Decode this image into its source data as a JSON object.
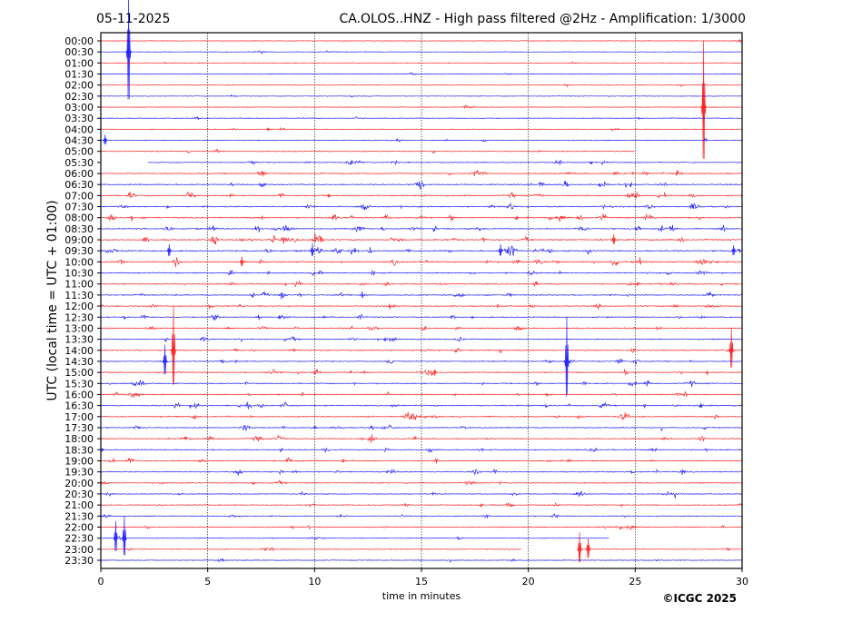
{
  "chart_data": {
    "type": "line",
    "date": "05-11-2025",
    "title": "CA.OLOS..HNZ - High pass filtered @2Hz - Amplification: 1/3000",
    "xlabel": "time in minutes",
    "ylabel": "UTC (local time = UTC + 01:00)",
    "xlim": [
      0,
      30
    ],
    "xticks": [
      "0",
      "5",
      "10",
      "15",
      "20",
      "25",
      "30"
    ],
    "grid": "vertical dotted at every 5 minutes",
    "colors": {
      "even_rows": "#ff0000",
      "odd_rows": "#0000ff"
    },
    "rows": [
      "00:00",
      "00:30",
      "01:00",
      "01:30",
      "02:00",
      "02:30",
      "03:00",
      "03:30",
      "04:00",
      "04:30",
      "05:00",
      "05:30",
      "06:00",
      "06:30",
      "07:00",
      "07:30",
      "08:00",
      "08:30",
      "09:00",
      "09:30",
      "10:00",
      "10:30",
      "11:00",
      "11:30",
      "12:00",
      "12:30",
      "13:00",
      "13:30",
      "14:00",
      "14:30",
      "15:00",
      "15:30",
      "16:00",
      "16:30",
      "17:00",
      "17:30",
      "18:00",
      "18:30",
      "19:00",
      "19:30",
      "20:00",
      "20:30",
      "21:00",
      "21:30",
      "22:00",
      "22:30",
      "23:00",
      "23:30"
    ],
    "row_activity": [
      0.05,
      0.05,
      0.05,
      0.06,
      0.05,
      0.05,
      0.06,
      0.08,
      0.1,
      0.12,
      0.15,
      0.2,
      0.3,
      0.32,
      0.35,
      0.35,
      0.4,
      0.4,
      0.45,
      0.5,
      0.45,
      0.35,
      0.3,
      0.35,
      0.3,
      0.3,
      0.3,
      0.25,
      0.25,
      0.25,
      0.3,
      0.3,
      0.3,
      0.35,
      0.35,
      0.3,
      0.3,
      0.25,
      0.3,
      0.25,
      0.2,
      0.2,
      0.2,
      0.2,
      0.2,
      0.1,
      0.1,
      0.1
    ],
    "gaps": [
      {
        "row": "05:00",
        "from": 25.0,
        "to": 30
      },
      {
        "row": "05:30",
        "from": 0,
        "to": 2.2
      },
      {
        "row": "22:30",
        "from": 23.8,
        "to": 30
      },
      {
        "row": "23:00",
        "from": 19.7,
        "to": 22.3
      }
    ],
    "events": [
      {
        "row": "00:30",
        "minute": 1.3,
        "amplitude": 11
      },
      {
        "row": "03:00",
        "minute": 28.2,
        "amplitude": 12
      },
      {
        "row": "04:30",
        "minute": 0.2,
        "amplitude": 1
      },
      {
        "row": "09:30",
        "minute": 3.2,
        "amplitude": 1.2
      },
      {
        "row": "09:30",
        "minute": 9.9,
        "amplitude": 1.2
      },
      {
        "row": "09:30",
        "minute": 18.7,
        "amplitude": 1.2
      },
      {
        "row": "09:30",
        "minute": 29.6,
        "amplitude": 1
      },
      {
        "row": "09:00",
        "minute": 24.0,
        "amplitude": 1
      },
      {
        "row": "10:00",
        "minute": 6.6,
        "amplitude": 1
      },
      {
        "row": "14:00",
        "minute": 3.4,
        "amplitude": 8
      },
      {
        "row": "14:30",
        "minute": 3.0,
        "amplitude": 3
      },
      {
        "row": "14:30",
        "minute": 21.8,
        "amplitude": 8
      },
      {
        "row": "14:00",
        "minute": 29.5,
        "amplitude": 4
      },
      {
        "row": "22:30",
        "minute": 0.7,
        "amplitude": 3
      },
      {
        "row": "22:30",
        "minute": 1.1,
        "amplitude": 4
      },
      {
        "row": "23:00",
        "minute": 22.4,
        "amplitude": 3
      },
      {
        "row": "23:00",
        "minute": 22.8,
        "amplitude": 2
      }
    ]
  },
  "footer": {
    "copyright": "©ICGC 2025"
  }
}
